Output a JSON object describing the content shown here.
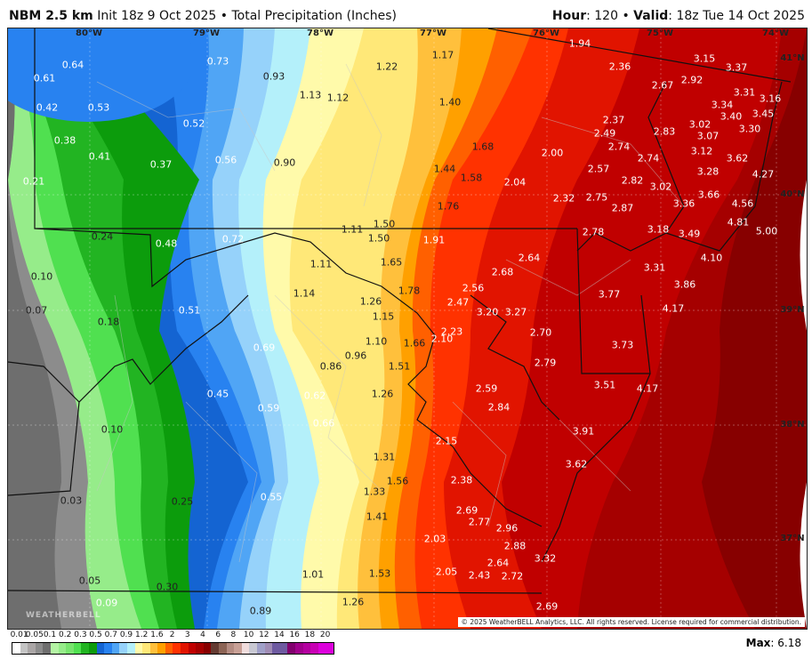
{
  "header": {
    "model": "NBM 2.5 km",
    "init": "Init 18z 9 Oct 2025 • Total Precipitation (Inches)",
    "hour_label": "Hour",
    "hour": ": 120 • ",
    "valid_label": "Valid",
    "valid": ": 18z Tue 14 Oct 2025"
  },
  "map": {
    "lon_labels": [
      "80°W",
      "79°W",
      "78°W",
      "77°W",
      "76°W",
      "75°W",
      "74°W"
    ],
    "lat_labels": [
      "41°N",
      "40°N",
      "39°N",
      "38°N",
      "37°N"
    ],
    "values": [
      "0.64",
      "0.61",
      "0.42",
      "0.53",
      "0.38",
      "0.41",
      "0.37",
      "0.21",
      "0.52",
      "0.56",
      "0.73",
      "0.93",
      "0.90",
      "1.13",
      "1.12",
      "1.22",
      "1.17",
      "1.40",
      "1.68",
      "1.44",
      "1.58",
      "2.04",
      "1.76",
      "1.94",
      "2.36",
      "2.67",
      "2.92",
      "3.15",
      "3.37",
      "3.31",
      "3.34",
      "3.16",
      "3.40",
      "3.45",
      "3.02",
      "3.30",
      "2.37",
      "2.49",
      "2.83",
      "3.07",
      "2.74",
      "2.74",
      "3.12",
      "3.62",
      "2.00",
      "2.57",
      "2.82",
      "3.02",
      "3.28",
      "4.27",
      "2.32",
      "2.75",
      "3.66",
      "3.36",
      "4.56",
      "2.87",
      "4.81",
      "5.00",
      "2.78",
      "3.18",
      "3.49",
      "4.10",
      "3.31",
      "3.86",
      "3.77",
      "4.17",
      "3.73",
      "3.51",
      "4.17",
      "3.91",
      "3.62",
      "0.24",
      "0.48",
      "0.72",
      "1.11",
      "1.50",
      "1.50",
      "1.91",
      "1.11",
      "1.65",
      "2.64",
      "2.68",
      "1.78",
      "2.56",
      "1.14",
      "2.47",
      "1.26",
      "3.20",
      "3.27",
      "1.15",
      "0.10",
      "0.07",
      "0.18",
      "0.51",
      "2.23",
      "2.70",
      "1.10",
      "1.66",
      "2.10",
      "0.69",
      "0.96",
      "0.86",
      "1.51",
      "2.79",
      "0.45",
      "0.62",
      "1.26",
      "2.59",
      "0.59",
      "0.66",
      "2.84",
      "0.10",
      "2.15",
      "1.31",
      "1.56",
      "2.38",
      "0.55",
      "1.33",
      "0.03",
      "0.25",
      "2.69",
      "1.41",
      "2.77",
      "2.96",
      "2.88",
      "2.03",
      "3.32",
      "2.64",
      "1.01",
      "1.53",
      "2.05",
      "2.43",
      "2.72",
      "0.05",
      "0.30",
      "1.26",
      "2.69",
      "0.09",
      "0.89"
    ],
    "copyright": "© 2025 WeatherBELL Analytics, LLC. All rights reserved. License required for commercial distribution.",
    "watermark": "WEATHERBELL"
  },
  "legend": {
    "ticks": [
      "0.01",
      "0.05",
      "0.1",
      "0.2",
      "0.3",
      "0.5",
      "0.7",
      "0.9",
      "1.2",
      "1.6",
      "2",
      "3",
      "4",
      "6",
      "8",
      "10",
      "12",
      "14",
      "16",
      "18",
      "20"
    ],
    "colors": [
      "#ffffff",
      "#c4c4c4",
      "#aaa6a6",
      "#8c8c8c",
      "#6e6e6e",
      "#b4f4a4",
      "#96ec8a",
      "#78e46e",
      "#50e050",
      "#22b422",
      "#0c9c0c",
      "#1464d2",
      "#2882f0",
      "#50a5f5",
      "#96d2fa",
      "#b4f0fa",
      "#fffaaa",
      "#ffe878",
      "#ffc03c",
      "#ffa000",
      "#ff6000",
      "#ff3200",
      "#e11400",
      "#c00000",
      "#a50000",
      "#870000",
      "#643b32",
      "#8c6455",
      "#b48c82",
      "#c8a096",
      "#f0dcdc",
      "#c8c8d2",
      "#a0a0c8",
      "#a08cb4",
      "#6e5aa0",
      "#6e5aa0",
      "#82006e",
      "#a0008c",
      "#b400a0",
      "#c800b4",
      "#dc00dc",
      "#dc00dc"
    ],
    "max_label": "Max",
    "max_value": ": 6.18"
  }
}
